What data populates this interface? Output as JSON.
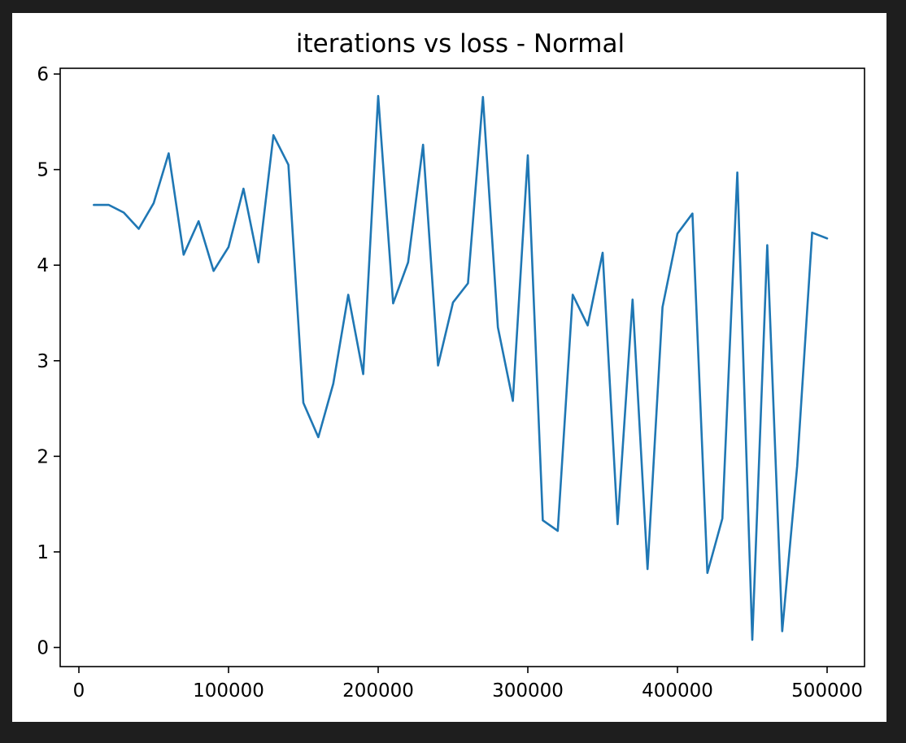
{
  "chart_data": {
    "type": "line",
    "title": "iterations vs loss - Normal",
    "xlabel": "",
    "ylabel": "",
    "xlim": [
      -12500,
      525000
    ],
    "ylim": [
      -0.2,
      6.06
    ],
    "grid": false,
    "line_color": "#1f77b4",
    "x_ticks": [
      0,
      100000,
      200000,
      300000,
      400000,
      500000
    ],
    "y_ticks": [
      0,
      1,
      2,
      3,
      4,
      5,
      6
    ],
    "series": [
      {
        "x": [
          10000,
          20000,
          30000,
          40000,
          50000,
          60000,
          70000,
          80000,
          90000,
          100000,
          110000,
          120000,
          130000,
          140000,
          150000,
          160000,
          170000,
          180000,
          190000,
          200000,
          210000,
          220000,
          230000,
          240000,
          250000,
          260000,
          270000,
          280000,
          290000,
          300000,
          310000,
          320000,
          330000,
          340000,
          350000,
          360000,
          370000,
          380000,
          390000,
          400000,
          410000,
          420000,
          430000,
          440000,
          450000,
          460000,
          470000,
          480000,
          490000,
          500000
        ],
        "y": [
          4.63,
          4.63,
          4.55,
          4.38,
          4.65,
          5.17,
          4.11,
          4.46,
          3.94,
          4.19,
          4.8,
          4.03,
          5.36,
          5.05,
          2.56,
          2.2,
          2.76,
          3.69,
          2.86,
          5.77,
          3.6,
          4.03,
          5.26,
          2.95,
          3.61,
          3.81,
          5.76,
          3.35,
          2.58,
          5.15,
          1.33,
          1.22,
          3.69,
          3.37,
          4.13,
          1.29,
          3.64,
          0.82,
          3.56,
          4.33,
          4.54,
          0.78,
          1.35,
          4.97,
          0.08,
          4.21,
          0.17,
          1.9,
          4.34,
          4.28
        ]
      }
    ]
  }
}
